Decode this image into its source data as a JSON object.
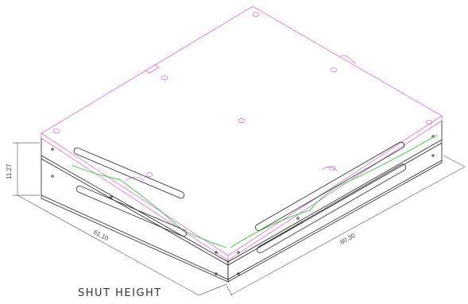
{
  "caption": "SHUT HEIGHT",
  "dimensions": {
    "height": "11.27",
    "depth_left": "61.10",
    "width_right": "60.30"
  },
  "colors": {
    "top_plate_outline": "#e070e0",
    "body_outline": "#222222",
    "accent_line": "#33cc33",
    "dimension_line": "#666666"
  }
}
